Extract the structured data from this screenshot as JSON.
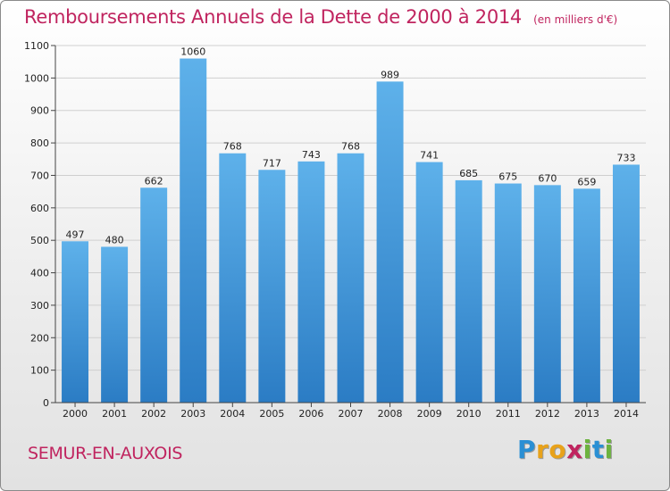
{
  "title": "Remboursements Annuels de la Dette de 2000 à 2014",
  "unit_note": "(en milliers d'€)",
  "city": "SEMUR-EN-AUXOIS",
  "logo": {
    "letters": [
      {
        "char": "P",
        "color": "#2a8fd4"
      },
      {
        "char": "r",
        "color": "#e8a21a"
      },
      {
        "char": "o",
        "color": "#e8a21a"
      },
      {
        "char": "x",
        "color": "#c0245f"
      },
      {
        "char": "i",
        "color": "#6cb33f"
      },
      {
        "char": "t",
        "color": "#2a8fd4"
      },
      {
        "char": "i",
        "color": "#6cb33f"
      }
    ]
  },
  "colors": {
    "title": "#c0245f",
    "bar_light": "#5eb1ea",
    "bar_dark": "#2b7cc4",
    "grid": "#cfcfcf"
  },
  "chart_data": {
    "type": "bar",
    "categories": [
      "2000",
      "2001",
      "2002",
      "2003",
      "2004",
      "2005",
      "2006",
      "2007",
      "2008",
      "2009",
      "2010",
      "2011",
      "2012",
      "2013",
      "2014"
    ],
    "values": [
      497,
      480,
      662,
      1060,
      768,
      717,
      743,
      768,
      989,
      741,
      685,
      675,
      670,
      659,
      733
    ],
    "ylim": [
      0,
      1100
    ],
    "yticks": [
      0,
      100,
      200,
      300,
      400,
      500,
      600,
      700,
      800,
      900,
      1000,
      1100
    ],
    "grid": true,
    "legend": "none",
    "xlabel": "",
    "ylabel": ""
  }
}
